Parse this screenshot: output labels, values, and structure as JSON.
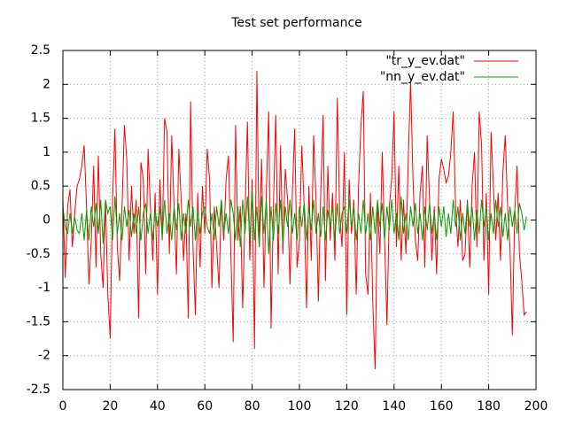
{
  "chart_data": {
    "type": "line",
    "title": "Test set performance",
    "x": [
      0,
      1,
      2,
      3,
      4,
      5,
      6,
      7,
      8,
      9,
      10,
      11,
      12,
      13,
      14,
      15,
      16,
      17,
      18,
      19,
      20,
      21,
      22,
      23,
      24,
      25,
      26,
      27,
      28,
      29,
      30,
      31,
      32,
      33,
      34,
      35,
      36,
      37,
      38,
      39,
      40,
      41,
      42,
      43,
      44,
      45,
      46,
      47,
      48,
      49,
      50,
      51,
      52,
      53,
      54,
      55,
      56,
      57,
      58,
      59,
      60,
      61,
      62,
      63,
      64,
      65,
      66,
      67,
      68,
      69,
      70,
      71,
      72,
      73,
      74,
      75,
      76,
      77,
      78,
      79,
      80,
      81,
      82,
      83,
      84,
      85,
      86,
      87,
      88,
      89,
      90,
      91,
      92,
      93,
      94,
      95,
      96,
      97,
      98,
      99,
      100,
      101,
      102,
      103,
      104,
      105,
      106,
      107,
      108,
      109,
      110,
      111,
      112,
      113,
      114,
      115,
      116,
      117,
      118,
      119,
      120,
      121,
      122,
      123,
      124,
      125,
      126,
      127,
      128,
      129,
      130,
      131,
      132,
      133,
      134,
      135,
      136,
      137,
      138,
      139,
      140,
      141,
      142,
      143,
      144,
      145,
      146,
      147,
      148,
      149,
      150,
      151,
      152,
      153,
      154,
      155,
      156,
      157,
      158,
      159,
      160,
      161,
      162,
      163,
      164,
      165,
      166,
      167,
      168,
      169,
      170,
      171,
      172,
      173,
      174,
      175,
      176,
      177,
      178,
      179,
      180,
      181,
      182,
      183,
      184,
      185,
      186,
      187,
      188,
      189,
      190,
      191,
      192,
      193,
      194,
      195,
      196
    ],
    "series": [
      {
        "name": "\"tr_y_ev.dat\"",
        "color": "#ff0000",
        "values": [
          0.3,
          -0.85,
          0.2,
          0.45,
          -0.4,
          0.1,
          0.5,
          0.6,
          0.8,
          1.1,
          0.2,
          -0.95,
          -0.3,
          0.8,
          -0.7,
          0.95,
          -0.5,
          -1.0,
          0.3,
          -1.1,
          -1.75,
          0.3,
          1.35,
          -0.4,
          -0.9,
          0.2,
          1.4,
          0.9,
          -0.6,
          0.5,
          -0.2,
          0.3,
          -1.45,
          0.85,
          0.6,
          -0.8,
          1.05,
          0.2,
          -0.6,
          0.4,
          -1.1,
          0.6,
          -0.3,
          1.5,
          1.3,
          -0.5,
          1.25,
          0.2,
          -0.8,
          1.05,
          0.3,
          -0.6,
          0.1,
          -1.45,
          1.75,
          -0.4,
          -1.4,
          0.4,
          -0.7,
          0.5,
          -0.2,
          1.05,
          0.6,
          -1.0,
          0.2,
          -0.4,
          -1.0,
          0.3,
          -0.3,
          0.6,
          0.95,
          -0.5,
          -1.8,
          1.4,
          -0.3,
          0.2,
          -1.3,
          0.1,
          1.45,
          -0.6,
          0.6,
          -1.9,
          2.2,
          -0.4,
          0.9,
          -1.0,
          0.4,
          1.6,
          -1.6,
          0.2,
          1.55,
          -0.8,
          1.1,
          -0.5,
          0.75,
          0.3,
          -0.95,
          0.4,
          1.35,
          -0.7,
          -0.3,
          1.1,
          0.2,
          -1.3,
          0.5,
          -0.6,
          1.25,
          0.3,
          -1.2,
          0.4,
          1.55,
          -0.9,
          0.8,
          -0.3,
          0.4,
          -0.6,
          1.8,
          0.1,
          -0.4,
          1.0,
          -1.4,
          0.6,
          -0.2,
          0.3,
          -1.1,
          0.5,
          1.4,
          1.9,
          -0.8,
          -1.1,
          0.4,
          -1.2,
          -2.2,
          0.2,
          -0.5,
          1.0,
          -0.3,
          -1.55,
          0.2,
          0.6,
          1.6,
          -0.4,
          0.8,
          -0.6,
          0.3,
          -0.5,
          0.9,
          2.05,
          0.6,
          -0.3,
          -0.6,
          0.4,
          0.8,
          -0.7,
          1.25,
          0.3,
          -0.6,
          0.2,
          -0.8,
          0.6,
          0.9,
          0.75,
          0.55,
          0.65,
          1.0,
          1.6,
          0.2,
          -0.4,
          0.3,
          -0.6,
          -0.5,
          0.3,
          -0.7,
          0.5,
          1.0,
          -0.4,
          1.6,
          1.1,
          -0.6,
          0.4,
          -1.1,
          1.3,
          0.5,
          -0.3,
          0.4,
          -0.6,
          0.7,
          1.25,
          0.2,
          -0.4,
          -1.7,
          0.1,
          0.8,
          -0.5,
          -0.9,
          -1.4,
          -1.35
        ]
      },
      {
        "name": "\"nn_y_ev.dat\"",
        "color": "#00a000",
        "values": [
          0.2,
          -0.1,
          -0.2,
          0.1,
          -0.2,
          0.05,
          -0.15,
          -0.2,
          0.1,
          -0.3,
          0.15,
          -0.3,
          0.2,
          -0.1,
          0.25,
          -0.2,
          0.3,
          -0.35,
          0.3,
          0.1,
          0.2,
          -0.3,
          0.35,
          -0.2,
          0.1,
          -0.3,
          0.2,
          -0.1,
          0.15,
          -0.25,
          0.1,
          -0.2,
          0.2,
          -0.3,
          0.1,
          0.25,
          -0.2,
          0.1,
          -0.3,
          0.15,
          -0.1,
          0.2,
          -0.25,
          0.3,
          -0.2,
          0.1,
          -0.3,
          0.2,
          -0.15,
          0.25,
          -0.3,
          0.1,
          -0.2,
          0.3,
          -0.1,
          0.2,
          -0.3,
          0.15,
          -0.2,
          0.1,
          0.2,
          -0.1,
          -0.2,
          0.1,
          -0.3,
          0.2,
          -0.1,
          0.3,
          -0.2,
          0.1,
          -0.2,
          0.3,
          0.1,
          -0.3,
          0.2,
          -0.4,
          0.3,
          -0.2,
          0.35,
          -0.3,
          0.45,
          -0.3,
          0.2,
          -0.4,
          0.35,
          -0.2,
          0.3,
          -0.5,
          0.2,
          -0.3,
          0.25,
          -0.2,
          0.3,
          -0.35,
          0.2,
          -0.1,
          0.3,
          -0.2,
          0.1,
          -0.3,
          0.2,
          -0.1,
          0.25,
          -0.3,
          0.2,
          -0.15,
          0.3,
          -0.2,
          0.1,
          -0.25,
          0.2,
          -0.3,
          0.15,
          -0.1,
          0.2,
          -0.3,
          0.25,
          -0.2,
          0.1,
          0.2,
          -0.2,
          0.3,
          -0.1,
          0.2,
          -0.3,
          0.1,
          -0.2,
          0.3,
          -0.2,
          0.1,
          -0.3,
          0.2,
          -0.2,
          0.3,
          -0.1,
          0.25,
          -0.3,
          0.2,
          -0.15,
          0.3,
          -0.2,
          0.1,
          -0.3,
          0.35,
          -0.2,
          0.1,
          -0.3,
          0.2,
          -0.1,
          0.25,
          -0.2,
          0.1,
          -0.3,
          0.2,
          -0.15,
          0.25,
          -0.2,
          0.1,
          -0.3,
          0.2,
          -0.1,
          0.2,
          -0.25,
          0.1,
          -0.2,
          0.3,
          -0.1,
          0.2,
          -0.3,
          0.1,
          -0.2,
          0.25,
          -0.1,
          0.2,
          -0.3,
          0.15,
          -0.2,
          0.3,
          -0.1,
          0.2,
          -0.3,
          0.1,
          -0.2,
          0.3,
          -0.1,
          0.2,
          -0.25,
          0.1,
          -0.3,
          0.2,
          -0.1,
          0.15,
          -0.2,
          0.25,
          0.1,
          -0.15,
          0.05
        ]
      }
    ],
    "xlim": [
      0,
      200
    ],
    "xticks": [
      0,
      20,
      40,
      60,
      80,
      100,
      120,
      140,
      160,
      180,
      200
    ],
    "ylim": [
      -2.5,
      2.5
    ],
    "yticks": [
      -2.5,
      -2,
      -1.5,
      -1,
      -0.5,
      0,
      0.5,
      1,
      1.5,
      2,
      2.5
    ],
    "grid": true,
    "legend": "top-right"
  }
}
